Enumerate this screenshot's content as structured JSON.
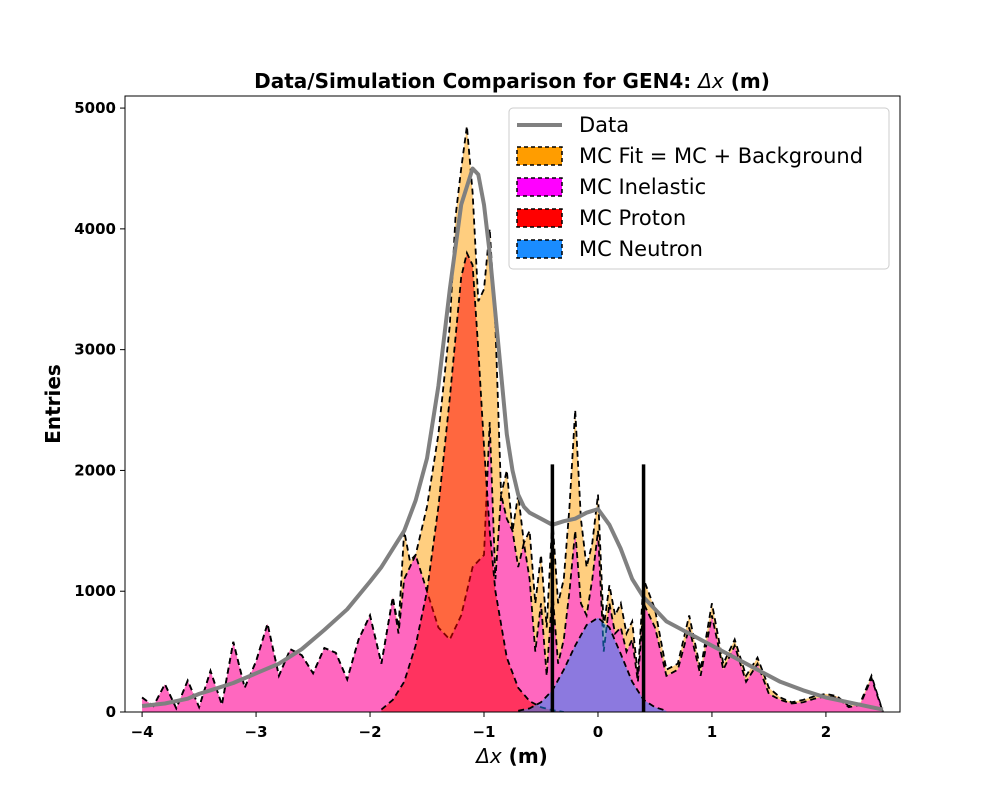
{
  "chart_data": {
    "type": "area",
    "title_main": "Data/Simulation Comparison for GEN4: ",
    "title_var": "Δx",
    "title_unit": " (m)",
    "xlabel_var": "Δx",
    "xlabel_unit": " (m)",
    "ylabel": "Entries",
    "xlim": [
      -4.15,
      2.65
    ],
    "ylim": [
      0,
      5100
    ],
    "xticks": [
      -4,
      -3,
      -2,
      -1,
      0,
      1,
      2
    ],
    "xtick_labels": [
      "−4",
      "−3",
      "−2",
      "−1",
      "0",
      "1",
      "2"
    ],
    "yticks": [
      0,
      1000,
      2000,
      3000,
      4000,
      5000
    ],
    "ytick_labels": [
      "0",
      "1000",
      "2000",
      "3000",
      "4000",
      "5000"
    ],
    "cut_lines": {
      "x": [
        -0.4,
        0.4
      ],
      "y_top": 2050,
      "color": "#000000"
    },
    "legend_placement": "top-right",
    "colors": {
      "data": "#808080",
      "mc_fit": "#ff9d00",
      "inelastic": "#ff00ff",
      "proton": "#ff0000",
      "neutron": "#1a8cff"
    },
    "series": [
      {
        "name": "Data",
        "style": "line",
        "x": [
          -4.0,
          -3.8,
          -3.6,
          -3.5,
          -3.4,
          -3.2,
          -3.0,
          -2.8,
          -2.6,
          -2.4,
          -2.2,
          -2.0,
          -1.9,
          -1.8,
          -1.7,
          -1.6,
          -1.5,
          -1.4,
          -1.3,
          -1.2,
          -1.1,
          -1.05,
          -1.0,
          -0.95,
          -0.9,
          -0.85,
          -0.8,
          -0.75,
          -0.7,
          -0.65,
          -0.6,
          -0.5,
          -0.4,
          -0.3,
          -0.2,
          -0.1,
          0.0,
          0.1,
          0.2,
          0.3,
          0.4,
          0.5,
          0.6,
          0.8,
          1.0,
          1.2,
          1.4,
          1.6,
          1.8,
          2.0,
          2.2,
          2.4,
          2.5
        ],
        "values": [
          50,
          70,
          110,
          150,
          180,
          240,
          320,
          400,
          520,
          680,
          850,
          1080,
          1200,
          1350,
          1500,
          1750,
          2100,
          2700,
          3500,
          4200,
          4500,
          4450,
          4200,
          3800,
          3300,
          2800,
          2300,
          2000,
          1800,
          1700,
          1650,
          1600,
          1550,
          1580,
          1600,
          1650,
          1680,
          1550,
          1350,
          1100,
          950,
          850,
          750,
          650,
          550,
          450,
          350,
          250,
          180,
          120,
          80,
          40,
          20
        ]
      },
      {
        "name": "MC Fit = MC + Background",
        "style": "filled-dashed",
        "x": [
          -4.0,
          -3.9,
          -3.8,
          -3.7,
          -3.6,
          -3.5,
          -3.4,
          -3.3,
          -3.2,
          -3.1,
          -3.0,
          -2.9,
          -2.8,
          -2.7,
          -2.6,
          -2.5,
          -2.4,
          -2.3,
          -2.2,
          -2.1,
          -2.0,
          -1.9,
          -1.8,
          -1.75,
          -1.7,
          -1.65,
          -1.6,
          -1.5,
          -1.4,
          -1.3,
          -1.25,
          -1.2,
          -1.15,
          -1.1,
          -1.05,
          -1.0,
          -0.95,
          -0.9,
          -0.85,
          -0.8,
          -0.75,
          -0.7,
          -0.65,
          -0.6,
          -0.55,
          -0.5,
          -0.45,
          -0.4,
          -0.35,
          -0.3,
          -0.25,
          -0.2,
          -0.15,
          -0.1,
          -0.05,
          0.0,
          0.05,
          0.1,
          0.15,
          0.2,
          0.25,
          0.3,
          0.35,
          0.4,
          0.5,
          0.6,
          0.7,
          0.8,
          0.9,
          1.0,
          1.1,
          1.2,
          1.3,
          1.4,
          1.5,
          1.6,
          1.7,
          1.8,
          1.9,
          2.0,
          2.1,
          2.2,
          2.3,
          2.4,
          2.5
        ],
        "values": [
          120,
          50,
          230,
          30,
          260,
          40,
          340,
          60,
          580,
          200,
          420,
          730,
          300,
          520,
          470,
          320,
          530,
          490,
          270,
          600,
          800,
          400,
          950,
          700,
          1500,
          1250,
          1300,
          1700,
          2300,
          3200,
          4100,
          4500,
          4850,
          4300,
          3400,
          3500,
          4000,
          3200,
          1800,
          2000,
          1500,
          1800,
          1400,
          1500,
          900,
          1300,
          700,
          1600,
          900,
          1100,
          1700,
          2500,
          1600,
          1200,
          1400,
          1800,
          700,
          1050,
          800,
          900,
          650,
          750,
          300,
          1100,
          850,
          350,
          400,
          800,
          350,
          900,
          400,
          600,
          300,
          450,
          200,
          120,
          80,
          100,
          130,
          150,
          130,
          50,
          70,
          300,
          0
        ]
      },
      {
        "name": "MC Inelastic",
        "style": "filled-dashed",
        "x": [
          -4.0,
          -3.9,
          -3.8,
          -3.7,
          -3.6,
          -3.5,
          -3.4,
          -3.3,
          -3.2,
          -3.1,
          -3.0,
          -2.9,
          -2.8,
          -2.7,
          -2.6,
          -2.5,
          -2.4,
          -2.3,
          -2.2,
          -2.1,
          -2.0,
          -1.9,
          -1.8,
          -1.75,
          -1.7,
          -1.6,
          -1.5,
          -1.4,
          -1.3,
          -1.2,
          -1.1,
          -1.0,
          -0.95,
          -0.9,
          -0.85,
          -0.8,
          -0.75,
          -0.7,
          -0.65,
          -0.6,
          -0.55,
          -0.5,
          -0.45,
          -0.4,
          -0.35,
          -0.3,
          -0.25,
          -0.2,
          -0.15,
          -0.1,
          -0.05,
          0.0,
          0.05,
          0.1,
          0.15,
          0.2,
          0.25,
          0.3,
          0.35,
          0.4,
          0.5,
          0.6,
          0.7,
          0.8,
          0.9,
          1.0,
          1.1,
          1.2,
          1.3,
          1.4,
          1.5,
          1.6,
          1.7,
          1.8,
          1.9,
          2.0,
          2.1,
          2.2,
          2.3,
          2.4,
          2.5
        ],
        "values": [
          120,
          50,
          230,
          30,
          260,
          40,
          340,
          60,
          580,
          200,
          420,
          730,
          300,
          520,
          470,
          320,
          530,
          490,
          270,
          600,
          800,
          400,
          950,
          650,
          1100,
          1300,
          1000,
          700,
          600,
          800,
          1200,
          1300,
          2400,
          1100,
          1800,
          1600,
          1500,
          1200,
          1400,
          1100,
          500,
          900,
          300,
          1000,
          400,
          600,
          1000,
          1500,
          900,
          800,
          1100,
          1500,
          500,
          900,
          650,
          700,
          500,
          600,
          250,
          900,
          700,
          300,
          350,
          700,
          300,
          800,
          350,
          550,
          250,
          400,
          150,
          100,
          70,
          80,
          110,
          130,
          120,
          40,
          60,
          280,
          0
        ]
      },
      {
        "name": "MC Proton",
        "style": "filled-dashed",
        "x": [
          -1.9,
          -1.8,
          -1.7,
          -1.6,
          -1.5,
          -1.4,
          -1.3,
          -1.25,
          -1.2,
          -1.15,
          -1.1,
          -1.05,
          -1.0,
          -0.95,
          -0.9,
          -0.8,
          -0.7,
          -0.6,
          -0.5,
          -0.4,
          -0.3
        ],
        "values": [
          20,
          100,
          250,
          550,
          1000,
          1700,
          2600,
          3100,
          3600,
          3800,
          3700,
          3000,
          2200,
          1500,
          1000,
          450,
          200,
          90,
          40,
          15,
          0
        ]
      },
      {
        "name": "MC Neutron",
        "style": "filled-dashed",
        "x": [
          -0.7,
          -0.6,
          -0.5,
          -0.4,
          -0.3,
          -0.2,
          -0.1,
          0.0,
          0.1,
          0.2,
          0.3,
          0.4,
          0.5,
          0.6
        ],
        "values": [
          10,
          30,
          80,
          180,
          350,
          550,
          720,
          780,
          700,
          480,
          250,
          100,
          40,
          10
        ]
      }
    ]
  }
}
